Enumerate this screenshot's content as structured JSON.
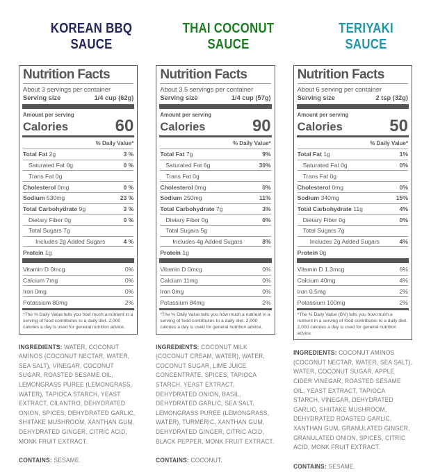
{
  "page": {
    "background": "#ffffff",
    "panel_text_color": "#55565a"
  },
  "products": [
    {
      "title_line1": "KOREAN BBQ",
      "title_line2": "SAUCE",
      "title_color": "#27265e",
      "panel": {
        "heading": "Nutrition Facts",
        "servings_line": "About 3 servings per container",
        "serving_size_label": "Serving size",
        "serving_size_value": "1/4 cup (62g)",
        "amount_label": "Amount per serving",
        "calories_label": "Calories",
        "calories_value": "60",
        "dv_header": "% Daily Value*",
        "rows": [
          {
            "label": "Total Fat",
            "amount": "2g",
            "dv": "3 %",
            "bold": true,
            "indent": 0
          },
          {
            "label": "Saturated Fat",
            "amount": "0g",
            "dv": "0 %",
            "bold": false,
            "indent": 1
          },
          {
            "label": "Trans Fat",
            "amount": "0g",
            "dv": "",
            "bold": false,
            "indent": 1
          },
          {
            "label": "Cholesterol",
            "amount": "0mg",
            "dv": "0 %",
            "bold": true,
            "indent": 0
          },
          {
            "label": "Sodium",
            "amount": "530mg",
            "dv": "23 %",
            "bold": true,
            "indent": 0
          },
          {
            "label": "Total Carbohydrate",
            "amount": "9g",
            "dv": "3 %",
            "bold": true,
            "indent": 0
          },
          {
            "label": "Dietary Fiber",
            "amount": "0g",
            "dv": "0 %",
            "bold": false,
            "indent": 1
          },
          {
            "label": "Total Sugars",
            "amount": "7g",
            "dv": "",
            "bold": false,
            "indent": 1
          },
          {
            "label": "Includes 2g Added Sugars",
            "amount": "",
            "dv": "4 %",
            "bold": false,
            "indent": 2
          },
          {
            "label": "Protein",
            "amount": "1g",
            "dv": "",
            "bold": true,
            "indent": 0
          }
        ],
        "vitamins": [
          {
            "label": "Vitamin D",
            "amount": "0mcg",
            "dv": "0%"
          },
          {
            "label": "Calcium",
            "amount": "7mg",
            "dv": "0%"
          },
          {
            "label": "Iron",
            "amount": "0mg",
            "dv": "0%"
          },
          {
            "label": "Potassium",
            "amount": "80mg",
            "dv": "2%"
          }
        ],
        "footnote": "*The % Daily Value tells you how much a nutrient in a serving of food contributes to a daily diet. 2,000 calories a day is used for general nutrition advice."
      },
      "ingredients_label": "INGREDIENTS:",
      "ingredients_text": "WATER, COCONUT AMINOS (COCONUT NECTAR, WATER, SEA SALT), VINEGAR, COCONUT SUGAR, ROASTED SESAME OIL, LEMONGRASS PUREE (LEMONGRASS, WATER), TAPIOCA STARCH, YEAST EXTRACT, CILANTRO, DEHYDRATED ONION, SPICES, DEHYDRATED GARLIC, SHIITAKE MUSHROOM, XANTHAN GUM, DEHYDRATED GINGER, CITRIC ACID, MONK FRUIT EXTRACT.",
      "contains_label": "CONTAINS:",
      "contains_text": "SESAME."
    },
    {
      "title_line1": "THAI COCONUT",
      "title_line2": "SAUCE",
      "title_color": "#1d7d22",
      "panel": {
        "heading": "Nutrition Facts",
        "servings_line": "About 3.5 servings per container",
        "serving_size_label": "Serving size",
        "serving_size_value": "1/4 cup (57g)",
        "amount_label": "Amount per serving",
        "calories_label": "Calories",
        "calories_value": "90",
        "dv_header": "% Daily Value*",
        "rows": [
          {
            "label": "Total Fat",
            "amount": "7g",
            "dv": "9%",
            "bold": true,
            "indent": 0
          },
          {
            "label": "Saturated Fat",
            "amount": "6g",
            "dv": "30%",
            "bold": false,
            "indent": 1
          },
          {
            "label": "Trans Fat",
            "amount": "0g",
            "dv": "",
            "bold": false,
            "indent": 1
          },
          {
            "label": "Cholesterol",
            "amount": "0mg",
            "dv": "0%",
            "bold": true,
            "indent": 0
          },
          {
            "label": "Sodium",
            "amount": "250mg",
            "dv": "11%",
            "bold": true,
            "indent": 0
          },
          {
            "label": "Total Carbohydrate",
            "amount": "7g",
            "dv": "3%",
            "bold": true,
            "indent": 0
          },
          {
            "label": "Dietary Fiber",
            "amount": "0g",
            "dv": "0%",
            "bold": false,
            "indent": 1
          },
          {
            "label": "Total Sugars",
            "amount": "5g",
            "dv": "",
            "bold": false,
            "indent": 1
          },
          {
            "label": "Includes 4g Added Sugars",
            "amount": "",
            "dv": "8%",
            "bold": false,
            "indent": 2
          },
          {
            "label": "Protein",
            "amount": "1g",
            "dv": "",
            "bold": true,
            "indent": 0
          }
        ],
        "vitamins": [
          {
            "label": "Vitamin D",
            "amount": "0mcg",
            "dv": "0%"
          },
          {
            "label": "Calcium",
            "amount": "11mg",
            "dv": "0%"
          },
          {
            "label": "Iron",
            "amount": "0mg",
            "dv": "0%"
          },
          {
            "label": "Potassium",
            "amount": "84mg",
            "dv": "2%"
          }
        ],
        "footnote": "*The % Daily Value tells you how much a nutrient in a serving of food contributes to a daily diet. 2,000 calories a day is used for general nutrition advice."
      },
      "ingredients_label": "INGREDIENTS:",
      "ingredients_text": "COCONUT MILK (COCONUT CREAM, WATER), WATER, COCONUT SUGAR, LIME JUICE CONCENTRATE, SPICES, TAPIOCA STARCH, YEAST EXTRACT, DEHYDRATED ONION, BASIL, DEHYDRATED GARLIC, SEA SALT, LEMONGRASS PUREE (LEMONGRASS, WATER), TURMERIC, XANTHAN GUM, DEHYDRATED GINGER, CITRIC ACID, BLACK PEPPER, MONK FRUIT EXTRACT.",
      "contains_label": "CONTAINS:",
      "contains_text": "COCONUT."
    },
    {
      "title_line1": "TERIYAKI",
      "title_line2": "SAUCE",
      "title_color": "#2395aa",
      "panel": {
        "heading": "Nutrition Facts",
        "servings_line": "About 6 serving per container",
        "serving_size_label": "Serving size",
        "serving_size_value": "2 tsp (32g)",
        "amount_label": "Amount per serving",
        "calories_label": "Calories",
        "calories_value": "50",
        "dv_header": "% Daily Value*",
        "rows": [
          {
            "label": "Total Fat",
            "amount": "1g",
            "dv": "1%",
            "bold": true,
            "indent": 0
          },
          {
            "label": "Saturated Fat",
            "amount": "0g",
            "dv": "0%",
            "bold": false,
            "indent": 1
          },
          {
            "label": "Trans Fat",
            "amount": "0g",
            "dv": "",
            "bold": false,
            "indent": 1
          },
          {
            "label": "Cholesterol",
            "amount": "0mg",
            "dv": "0%",
            "bold": true,
            "indent": 0
          },
          {
            "label": "Sodium",
            "amount": "340mg",
            "dv": "15%",
            "bold": true,
            "indent": 0
          },
          {
            "label": "Total Carbohydrate",
            "amount": "11g",
            "dv": "4%",
            "bold": true,
            "indent": 0
          },
          {
            "label": "Dietary Fiber",
            "amount": "0g",
            "dv": "0%",
            "bold": false,
            "indent": 1
          },
          {
            "label": "Total Sugars",
            "amount": "7g",
            "dv": "",
            "bold": false,
            "indent": 1
          },
          {
            "label": "Includes 2g Added Sugars",
            "amount": "",
            "dv": "4%",
            "bold": false,
            "indent": 2
          },
          {
            "label": "Protein",
            "amount": "0g",
            "dv": "",
            "bold": true,
            "indent": 0
          }
        ],
        "vitamins": [
          {
            "label": "Vitamin D",
            "amount": "1.3mcg",
            "dv": "6%"
          },
          {
            "label": "Calcium",
            "amount": "40mg",
            "dv": "4%"
          },
          {
            "label": "Iron",
            "amount": "0.5mg",
            "dv": "2%"
          },
          {
            "label": "Potassium",
            "amount": "100mg",
            "dv": "2%"
          }
        ],
        "footnote": "*The % Daily Value (DV) tells you how much a nutrient in a serving of food contributes to a daily diet. 2,000 calories a day is used for general nutrition advice."
      },
      "ingredients_label": "INGREDIENTS:",
      "ingredients_text": "COCONUT AMINOS (COCONUT NECTAR, WATER, SEA SALT), WATER, COCONUT SUGAR, APPLE CIDER VINEGAR, ROASTED SESAME OIL, YEAST EXTRACT, TAPIOCA STARCH, VINEGAR, DEHYDRATED GARLIC, SHIITAKE MUSHROOM, DEHYDRATED ROASTED GARLIC, XANTHAN GUM, GRANULATED GINGER, GRANULATED ONION, SPICES, CITRIC ACID, MONK FRUIT EXTRACT.",
      "contains_label": "CONTAINS:",
      "contains_text": "SESAME."
    }
  ]
}
